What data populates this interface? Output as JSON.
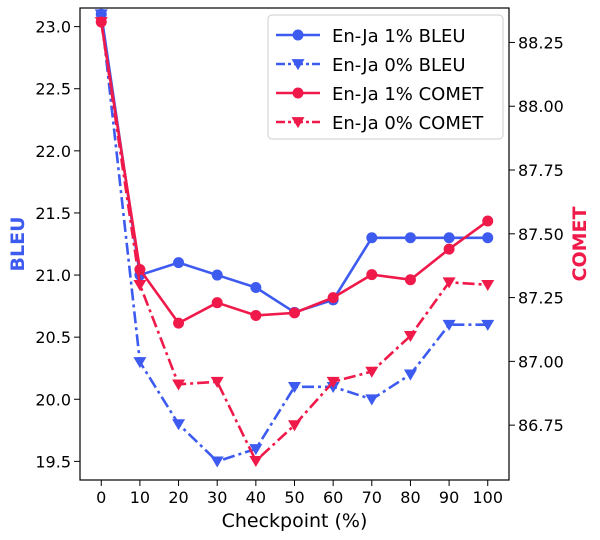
{
  "chart_data": {
    "type": "line",
    "x": [
      0,
      10,
      20,
      30,
      40,
      50,
      60,
      70,
      80,
      90,
      100
    ],
    "xlabel": "Checkpoint (%)",
    "x_ticks": [
      "0",
      "10",
      "20",
      "30",
      "40",
      "50",
      "60",
      "70",
      "80",
      "90",
      "100"
    ],
    "xlim": [
      -5.5,
      105.5
    ],
    "left_axis": {
      "label": "BLEU",
      "label_color": "#3e5bf0",
      "ylim": [
        19.35,
        23.15
      ],
      "ticks": [
        19.5,
        20.0,
        20.5,
        21.0,
        21.5,
        22.0,
        22.5,
        23.0
      ],
      "tick_labels": [
        "19.5",
        "20.0",
        "20.5",
        "21.0",
        "21.5",
        "22.0",
        "22.5",
        "23.0"
      ]
    },
    "right_axis": {
      "label": "COMET",
      "label_color": "#f01a4a",
      "ylim": [
        86.535,
        88.385
      ],
      "ticks": [
        86.75,
        87.0,
        87.25,
        87.5,
        87.75,
        88.0,
        88.25
      ],
      "tick_labels": [
        "86.75",
        "87.00",
        "87.25",
        "87.50",
        "87.75",
        "88.00",
        "88.25"
      ]
    },
    "legend_position": "top-right",
    "grid": false,
    "series": [
      {
        "name": "En-Ja 1% BLEU",
        "axis": "left",
        "color": "#3e5bf0",
        "line": "solid",
        "marker": "circle",
        "values": [
          23.1,
          21.0,
          21.1,
          21.0,
          20.9,
          20.7,
          20.8,
          21.3,
          21.3,
          21.3,
          21.3
        ]
      },
      {
        "name": "En-Ja 0% BLEU",
        "axis": "left",
        "color": "#3e5bf0",
        "line": "dashdot",
        "marker": "triangle-down",
        "values": [
          23.1,
          20.3,
          19.8,
          19.5,
          19.6,
          20.1,
          20.1,
          20.0,
          20.2,
          20.6,
          20.6
        ]
      },
      {
        "name": "En-Ja 1% COMET",
        "axis": "right",
        "color": "#f01a4a",
        "line": "solid",
        "marker": "circle",
        "values": [
          88.33,
          87.36,
          87.15,
          87.23,
          87.18,
          87.19,
          87.25,
          87.34,
          87.32,
          87.44,
          87.55
        ]
      },
      {
        "name": "En-Ja 0% COMET",
        "axis": "right",
        "color": "#f01a4a",
        "line": "dashdot",
        "marker": "triangle-down",
        "values": [
          88.33,
          87.3,
          86.91,
          86.92,
          86.61,
          86.75,
          86.92,
          86.96,
          87.1,
          87.31,
          87.3
        ]
      }
    ]
  }
}
